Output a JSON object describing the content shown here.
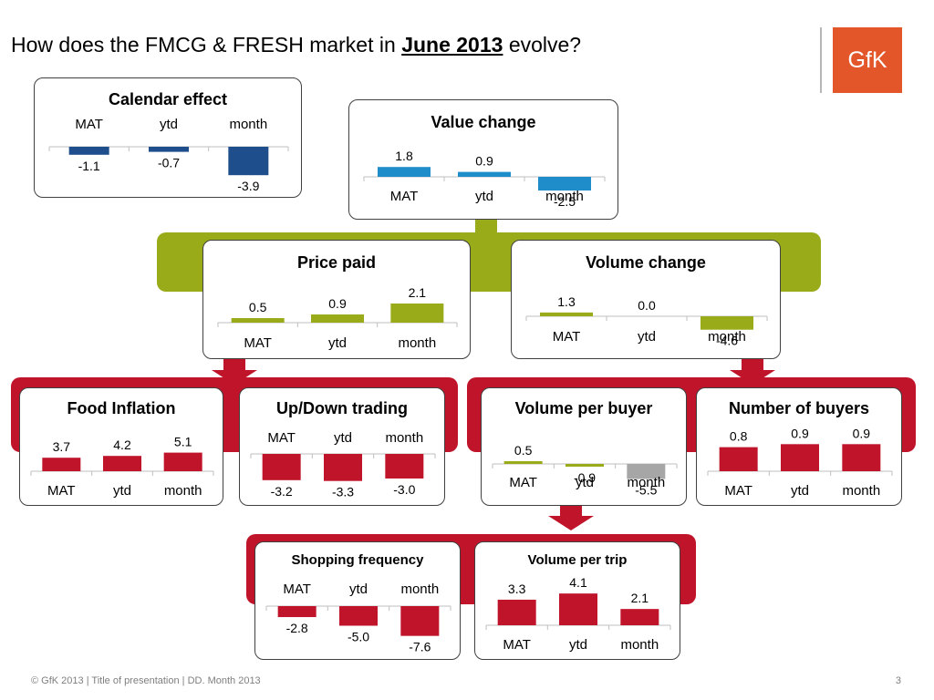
{
  "title": {
    "prefix": "How does the FMCG & FRESH market in ",
    "bold": "June 2013",
    "suffix": " evolve?"
  },
  "logo": {
    "text": "GfK"
  },
  "colors": {
    "navy": "#1f4e8c",
    "blue": "#1f8dc9",
    "olive": "#9aab1a",
    "red": "#c0142b",
    "gray": "#a6a6a6",
    "logo": "#e2562a"
  },
  "footer": {
    "text": "© GfK 2013 | Title of presentation | DD. Month 2013",
    "page": "3"
  },
  "chart_data": [
    {
      "id": "calendar",
      "type": "bar",
      "title": "Calendar effect",
      "categories": [
        "MAT",
        "ytd",
        "month"
      ],
      "values": [
        -1.1,
        -0.7,
        -3.9
      ],
      "value_labels": [
        "-1.1",
        "-0.7",
        "-3.9"
      ],
      "color": "#1f4e8c"
    },
    {
      "id": "value",
      "type": "bar",
      "title": "Value change",
      "categories": [
        "MAT",
        "ytd",
        "month"
      ],
      "values": [
        1.8,
        0.9,
        -2.5
      ],
      "value_labels": [
        "1.8",
        "0.9",
        "-2.5"
      ],
      "color": "#1f8dc9"
    },
    {
      "id": "price",
      "type": "bar",
      "title": "Price paid",
      "categories": [
        "MAT",
        "ytd",
        "month"
      ],
      "values": [
        0.5,
        0.9,
        2.1
      ],
      "value_labels": [
        "0.5",
        "0.9",
        "2.1"
      ],
      "color": "#9aab1a"
    },
    {
      "id": "volume",
      "type": "bar",
      "title": "Volume change",
      "categories": [
        "MAT",
        "ytd",
        "month"
      ],
      "values": [
        1.3,
        0.0,
        -4.6
      ],
      "value_labels": [
        "1.3",
        "0.0",
        "-4.6"
      ],
      "color": "#9aab1a"
    },
    {
      "id": "food",
      "type": "bar",
      "title": "Food Inflation",
      "categories": [
        "MAT",
        "ytd",
        "month"
      ],
      "values": [
        3.7,
        4.2,
        5.1
      ],
      "value_labels": [
        "3.7",
        "4.2",
        "5.1"
      ],
      "color": "#c0142b"
    },
    {
      "id": "updown",
      "type": "bar",
      "title": "Up/Down trading",
      "categories": [
        "MAT",
        "ytd",
        "month"
      ],
      "values": [
        -3.2,
        -3.3,
        -3.0
      ],
      "value_labels": [
        "-3.2",
        "-3.3",
        "-3.0"
      ],
      "color": "#c0142b"
    },
    {
      "id": "vpb",
      "type": "bar",
      "title": "Volume per buyer",
      "categories": [
        "MAT",
        "ytd",
        "month"
      ],
      "values": [
        0.5,
        -0.9,
        -5.5
      ],
      "value_labels": [
        "0.5",
        "-0.9",
        "-5.5"
      ],
      "color": "#a6a6a6"
    },
    {
      "id": "buyers",
      "type": "bar",
      "title": "Number of buyers",
      "categories": [
        "MAT",
        "ytd",
        "month"
      ],
      "values": [
        0.8,
        0.9,
        0.9
      ],
      "value_labels": [
        "0.8",
        "0.9",
        "0.9"
      ],
      "color": "#c0142b"
    },
    {
      "id": "shopfreq",
      "type": "bar",
      "title": "Shopping frequency",
      "categories": [
        "MAT",
        "ytd",
        "month"
      ],
      "values": [
        -2.8,
        -5.0,
        -7.6
      ],
      "value_labels": [
        "-2.8",
        "-5.0",
        "-7.6"
      ],
      "color": "#c0142b"
    },
    {
      "id": "vpt",
      "type": "bar",
      "title": "Volume per trip",
      "categories": [
        "MAT",
        "ytd",
        "month"
      ],
      "values": [
        3.3,
        4.1,
        2.1
      ],
      "value_labels": [
        "3.3",
        "4.1",
        "2.1"
      ],
      "color": "#c0142b"
    }
  ]
}
